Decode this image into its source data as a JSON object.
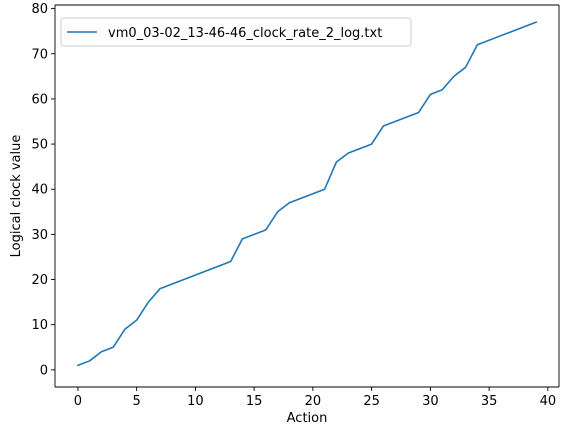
{
  "chart_data": {
    "type": "line",
    "xlabel": "Action",
    "ylabel": "Logical clock value",
    "xlim": [
      -1.95,
      40.95
    ],
    "ylim": [
      -3.8,
      80.8
    ],
    "xticks": [
      0,
      5,
      10,
      15,
      20,
      25,
      30,
      35,
      40
    ],
    "yticks": [
      0,
      10,
      20,
      30,
      40,
      50,
      60,
      70,
      80
    ],
    "grid": false,
    "legend_position": "top-left",
    "series": [
      {
        "name": "vm0_03-02_13-46-46_clock_rate_2_log.txt",
        "color": "#1f77b4",
        "x": [
          0,
          1,
          2,
          3,
          4,
          5,
          6,
          7,
          13,
          14,
          16,
          17,
          18,
          21,
          22,
          23,
          25,
          26,
          29,
          30,
          31,
          32,
          33,
          34,
          39
        ],
        "y": [
          1,
          2,
          4,
          5,
          9,
          11,
          15,
          18,
          24,
          29,
          31,
          35,
          37,
          40,
          46,
          48,
          50,
          54,
          57,
          61,
          62,
          65,
          67,
          72,
          77
        ]
      }
    ]
  }
}
